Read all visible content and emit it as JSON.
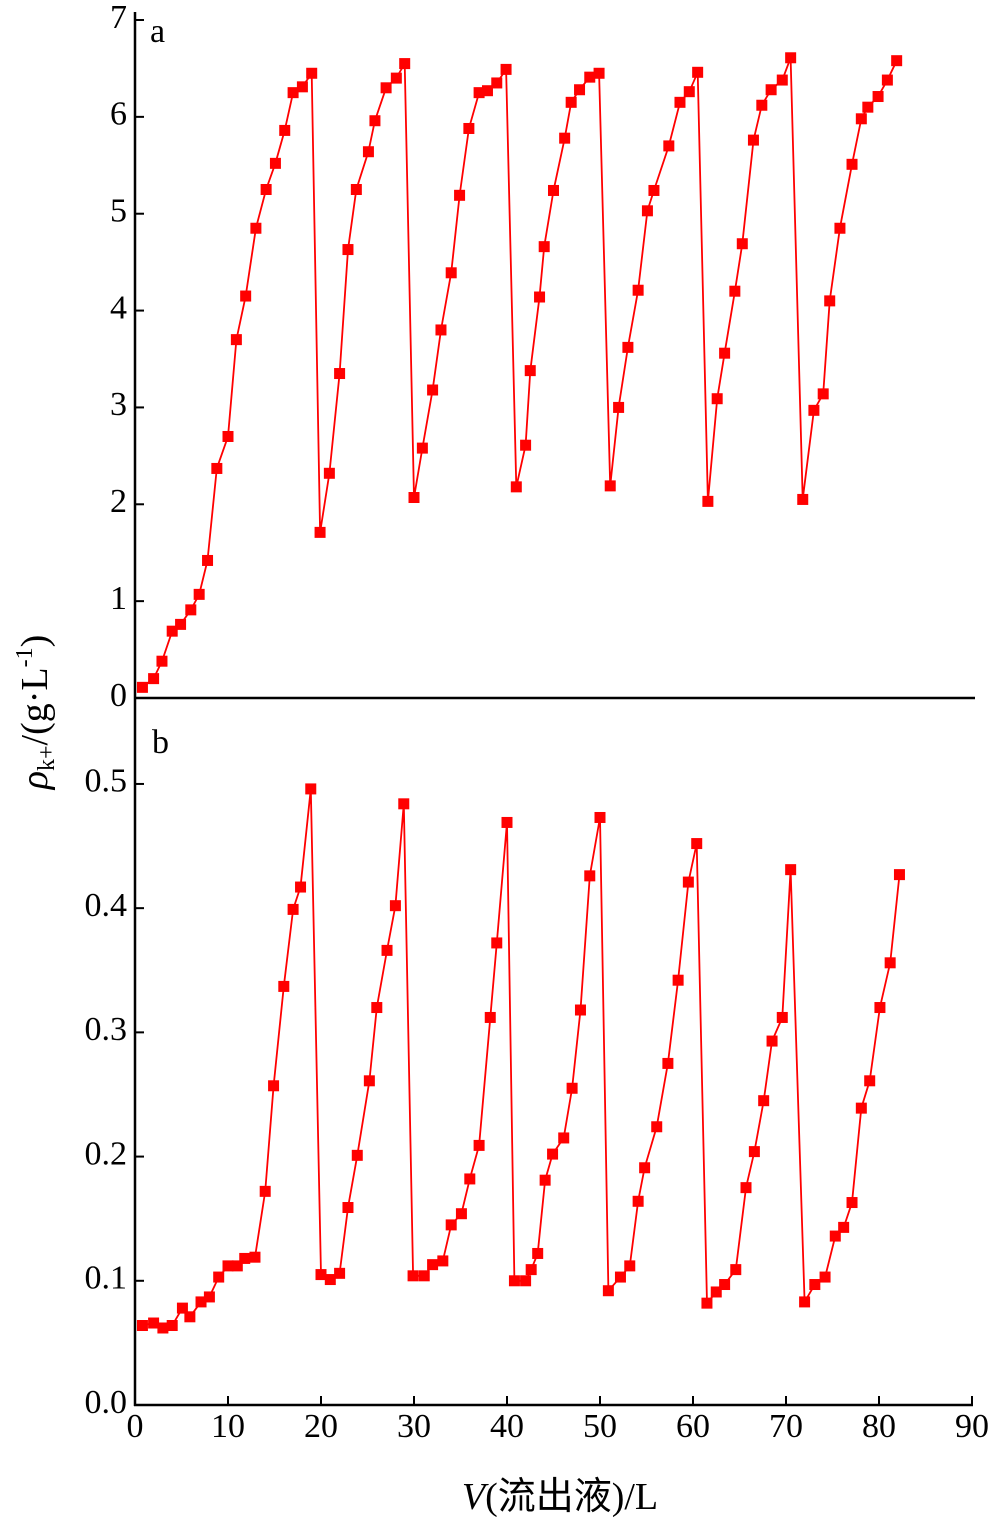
{
  "chart_data": [
    {
      "type": "line",
      "panel_label": "a",
      "xlim": [
        0,
        90
      ],
      "ylim": [
        0,
        7
      ],
      "yticks": [
        0,
        1,
        2,
        3,
        4,
        5,
        6,
        7
      ],
      "series": [
        {
          "color": "#ff0000",
          "x": [
            0.8,
            2.0,
            2.9,
            4.0,
            4.9,
            6.0,
            6.9,
            7.8,
            8.8,
            10.0,
            10.9,
            11.9,
            13.0,
            14.1,
            15.1,
            16.1,
            17.0,
            18.0,
            19.0,
            19.9,
            20.9,
            22.0,
            22.9,
            23.8,
            25.1,
            25.8,
            27.0,
            28.1,
            29.0,
            30.0,
            30.9,
            32.0,
            32.9,
            34.0,
            34.9,
            35.9,
            37.0,
            37.9,
            38.9,
            39.9,
            41.0,
            42.0,
            42.5,
            43.5,
            44.0,
            45.0,
            46.2,
            46.9,
            47.8,
            48.9,
            49.9,
            51.1,
            52.0,
            53.0,
            54.1,
            55.1,
            55.8,
            57.4,
            58.6,
            59.6,
            60.5,
            61.6,
            62.6,
            63.4,
            64.5,
            65.3,
            66.5,
            67.4,
            68.4,
            69.6,
            70.5,
            71.8,
            73.0,
            74.0,
            74.7,
            75.8,
            77.1,
            78.1,
            78.8,
            79.9,
            80.9,
            81.9
          ],
          "values": [
            0.11,
            0.2,
            0.38,
            0.69,
            0.76,
            0.91,
            1.07,
            1.42,
            2.37,
            2.7,
            3.7,
            4.15,
            4.85,
            5.25,
            5.52,
            5.86,
            6.25,
            6.31,
            6.45,
            1.71,
            2.32,
            3.35,
            4.63,
            5.25,
            5.64,
            5.96,
            6.3,
            6.4,
            6.55,
            2.07,
            2.58,
            3.18,
            3.8,
            4.39,
            5.19,
            5.88,
            6.25,
            6.27,
            6.35,
            6.49,
            2.18,
            2.61,
            3.38,
            4.14,
            4.66,
            5.24,
            5.78,
            6.15,
            6.28,
            6.41,
            6.45,
            2.19,
            3.0,
            3.62,
            4.21,
            5.03,
            5.24,
            5.7,
            6.15,
            6.26,
            6.46,
            2.03,
            3.09,
            3.56,
            4.2,
            4.69,
            5.76,
            6.12,
            6.28,
            6.38,
            6.61,
            2.05,
            2.97,
            3.14,
            4.1,
            4.85,
            5.51,
            5.98,
            6.1,
            6.21,
            6.38,
            6.58
          ]
        }
      ]
    },
    {
      "type": "line",
      "panel_label": "b",
      "xlim": [
        0,
        90
      ],
      "xticks": [
        0,
        10,
        20,
        30,
        40,
        50,
        60,
        70,
        80,
        90
      ],
      "ylim": [
        0,
        0.57
      ],
      "yticks": [
        {
          "value": 0,
          "label": "0.0"
        },
        0.1,
        0.2,
        0.3,
        0.4,
        0.5
      ],
      "x_label": {
        "italic": "V",
        "text": "(流出液)/L"
      },
      "y_label": {
        "symbol": "ρ",
        "sub": "k+",
        "text": "/(g·L",
        "sup": "-1",
        "close": ")"
      },
      "series": [
        {
          "color": "#ff0000",
          "x": [
            0.8,
            2.0,
            3.0,
            4.0,
            5.1,
            5.9,
            7.1,
            8.0,
            9.0,
            10.0,
            11.0,
            11.8,
            12.9,
            14.0,
            14.9,
            16.0,
            17.0,
            17.8,
            18.9,
            20.0,
            21.0,
            22.0,
            22.9,
            23.9,
            25.2,
            26.0,
            27.1,
            28.0,
            28.9,
            29.9,
            31.1,
            32.0,
            33.1,
            34.0,
            35.1,
            36.0,
            37.0,
            38.2,
            38.9,
            40.0,
            40.8,
            42.0,
            42.6,
            43.3,
            44.1,
            44.9,
            46.1,
            47.0,
            47.9,
            48.9,
            50.0,
            50.9,
            52.2,
            53.2,
            54.1,
            54.8,
            56.1,
            57.3,
            58.4,
            59.5,
            60.4,
            61.5,
            62.5,
            63.4,
            64.6,
            65.7,
            66.6,
            67.6,
            68.5,
            69.6,
            70.5,
            72.0,
            73.1,
            74.2,
            75.3,
            76.2,
            77.1,
            78.1,
            79.0,
            80.1,
            81.2,
            82.2
          ],
          "values": [
            0.064,
            0.066,
            0.062,
            0.064,
            0.078,
            0.071,
            0.083,
            0.087,
            0.103,
            0.112,
            0.112,
            0.118,
            0.119,
            0.172,
            0.257,
            0.337,
            0.399,
            0.417,
            0.496,
            0.105,
            0.101,
            0.106,
            0.159,
            0.201,
            0.261,
            0.32,
            0.366,
            0.402,
            0.484,
            0.104,
            0.104,
            0.113,
            0.116,
            0.145,
            0.154,
            0.182,
            0.209,
            0.312,
            0.372,
            0.469,
            0.1,
            0.1,
            0.109,
            0.122,
            0.181,
            0.202,
            0.215,
            0.255,
            0.318,
            0.426,
            0.473,
            0.092,
            0.103,
            0.112,
            0.164,
            0.191,
            0.224,
            0.275,
            0.342,
            0.421,
            0.452,
            0.082,
            0.091,
            0.097,
            0.109,
            0.175,
            0.204,
            0.245,
            0.293,
            0.312,
            0.431,
            0.083,
            0.097,
            0.103,
            0.136,
            0.143,
            0.163,
            0.239,
            0.261,
            0.32,
            0.356,
            0.427
          ]
        }
      ]
    }
  ]
}
